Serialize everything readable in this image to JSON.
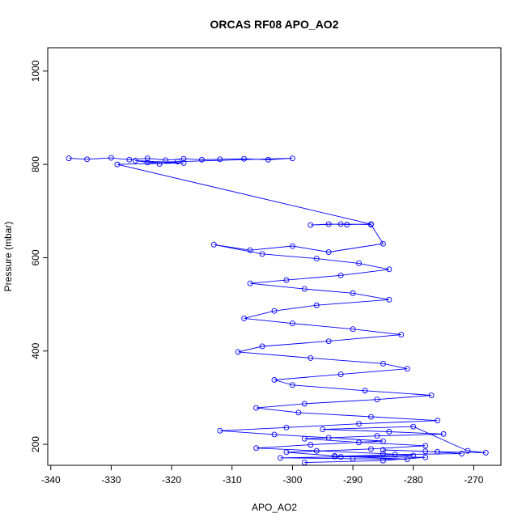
{
  "chart_data": {
    "type": "scatter",
    "title": "ORCAS RF08 APO_AO2",
    "xlabel": "APO_AO2",
    "ylabel": "Pressure (mbar)",
    "xlim": [
      -340.5,
      -265.5
    ],
    "ylim": [
      1050,
      155
    ],
    "y_reversed": true,
    "x_ticks": [
      -340,
      -330,
      -320,
      -310,
      -300,
      -290,
      -280,
      -270
    ],
    "y_ticks": [
      200,
      400,
      600,
      800,
      1000
    ],
    "grid": false,
    "legend": "none",
    "marker": "open-circle",
    "line": true,
    "series_color": "#0000ff",
    "series": [
      {
        "x": [
          -337,
          -334,
          -330,
          -327,
          -324,
          -321,
          -318,
          -315,
          -312,
          -308,
          -304,
          -300,
          -324,
          -319,
          -322,
          -326,
          -318,
          -329,
          -287,
          -291,
          -294,
          -297,
          -292,
          -287,
          -285,
          -294,
          -300,
          -307,
          -313,
          -305,
          -296,
          -289,
          -284,
          -292,
          -301,
          -307,
          -298,
          -290,
          -284,
          -296,
          -303,
          -308,
          -300,
          -290,
          -282,
          -294,
          -305,
          -309,
          -297,
          -285,
          -281,
          -292,
          -303,
          -300,
          -288,
          -277,
          -286,
          -298,
          -306,
          -299,
          -287,
          -276,
          -289,
          -301,
          -312,
          -303,
          -294,
          -285,
          -297,
          -306,
          -296,
          -285,
          -280,
          -292,
          -302,
          -290,
          -281,
          -293,
          -301,
          -287,
          -278,
          -289,
          -298,
          -286,
          -275,
          -284,
          -295,
          -280,
          -271,
          -268,
          -276,
          -285,
          -278,
          -272,
          -283,
          -293,
          -278,
          -285,
          -298
        ],
        "y": [
          813,
          811,
          814,
          810,
          813,
          809,
          812,
          810,
          811,
          812,
          810,
          813,
          804,
          806,
          801,
          808,
          803,
          800,
          672,
          671,
          672,
          670,
          672,
          671,
          630,
          612,
          625,
          616,
          628,
          608,
          598,
          588,
          575,
          562,
          552,
          545,
          533,
          524,
          510,
          498,
          486,
          470,
          459,
          447,
          435,
          421,
          410,
          398,
          385,
          373,
          362,
          350,
          338,
          327,
          315,
          305,
          296,
          287,
          278,
          268,
          259,
          251,
          244,
          236,
          229,
          221,
          214,
          207,
          199,
          192,
          186,
          180,
          176,
          173,
          171,
          169,
          168,
          175,
          183,
          190,
          197,
          204,
          212,
          218,
          222,
          227,
          232,
          238,
          186,
          182,
          184,
          188,
          185,
          180,
          178,
          174,
          172,
          165,
          161
        ]
      }
    ]
  }
}
